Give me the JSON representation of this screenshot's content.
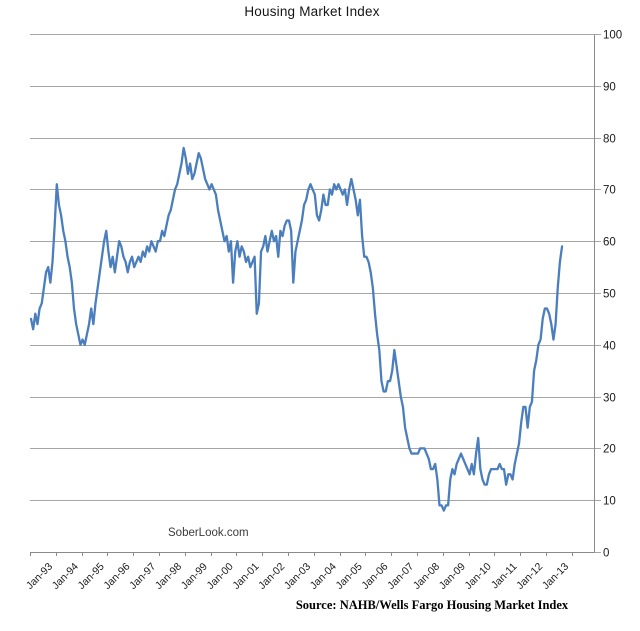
{
  "chart_data": {
    "type": "line",
    "title": "Housing Market Index",
    "watermark": "SoberLook.com",
    "source_note": "Source: NAHB/Wells Fargo Housing Market Index",
    "ylim": [
      0,
      100
    ],
    "ytick_step": 10,
    "yaxis_side": "right",
    "grid": "horizontal",
    "legend": "none",
    "x_tick_labels": [
      "Jan-93",
      "Jan-94",
      "Jan-95",
      "Jan-96",
      "Jan-97",
      "Jan-98",
      "Jan-99",
      "Jan-00",
      "Jan-01",
      "Jan-02",
      "Jan-03",
      "Jan-04",
      "Jan-05",
      "Jan-06",
      "Jan-07",
      "Jan-08",
      "Jan-09",
      "Jan-10",
      "Jan-11",
      "Jan-12",
      "Jan-13"
    ],
    "colors": {
      "line": "#4a7ebd",
      "grid": "#a6a6a6",
      "axis": "#8a8a8a",
      "text": "#1a1a1a"
    },
    "series": [
      {
        "name": "NAHB/Wells Fargo Housing Market Index",
        "start": "Jan-1993",
        "frequency": "monthly",
        "values": [
          45,
          43,
          46,
          44,
          47,
          48,
          51,
          54,
          55,
          52,
          56,
          63,
          71,
          67,
          65,
          62,
          60,
          57,
          55,
          52,
          47,
          44,
          42,
          40,
          41,
          40,
          42,
          44,
          47,
          44,
          48,
          51,
          54,
          57,
          60,
          62,
          58,
          55,
          57,
          54,
          57,
          60,
          59,
          57,
          56,
          54,
          56,
          57,
          55,
          56,
          57,
          56,
          58,
          57,
          59,
          58,
          60,
          59,
          58,
          60,
          60,
          62,
          61,
          63,
          65,
          66,
          68,
          70,
          71,
          73,
          75,
          78,
          76,
          73,
          75,
          72,
          73,
          75,
          77,
          76,
          74,
          72,
          71,
          70,
          71,
          70,
          69,
          66,
          64,
          62,
          60,
          61,
          58,
          60,
          52,
          58,
          60,
          57,
          59,
          58,
          56,
          57,
          55,
          56,
          57,
          46,
          48,
          58,
          59,
          61,
          58,
          60,
          62,
          60,
          61,
          57,
          62,
          61,
          63,
          64,
          64,
          62,
          52,
          58,
          60,
          62,
          64,
          67,
          68,
          70,
          71,
          70,
          69,
          65,
          64,
          66,
          69,
          67,
          67,
          70,
          69,
          71,
          70,
          71,
          70,
          69,
          70,
          67,
          70,
          72,
          70,
          68,
          65,
          68,
          61,
          57,
          57,
          56,
          54,
          51,
          46,
          42,
          39,
          33,
          31,
          31,
          33,
          33,
          35,
          39,
          36,
          33,
          30,
          28,
          24,
          22,
          20,
          19,
          19,
          19,
          19,
          20,
          20,
          20,
          19,
          18,
          16,
          16,
          17,
          14,
          9,
          9,
          8,
          9,
          9,
          14,
          16,
          15,
          17,
          18,
          19,
          18,
          17,
          16,
          15,
          17,
          15,
          19,
          22,
          16,
          14,
          13,
          13,
          15,
          16,
          16,
          16,
          16,
          17,
          16,
          16,
          13,
          15,
          15,
          14,
          17,
          19,
          21,
          25,
          28,
          28,
          24,
          28,
          29,
          35,
          37,
          40,
          41,
          45,
          47,
          47,
          46,
          44,
          41,
          44,
          51,
          56,
          59
        ]
      }
    ]
  }
}
